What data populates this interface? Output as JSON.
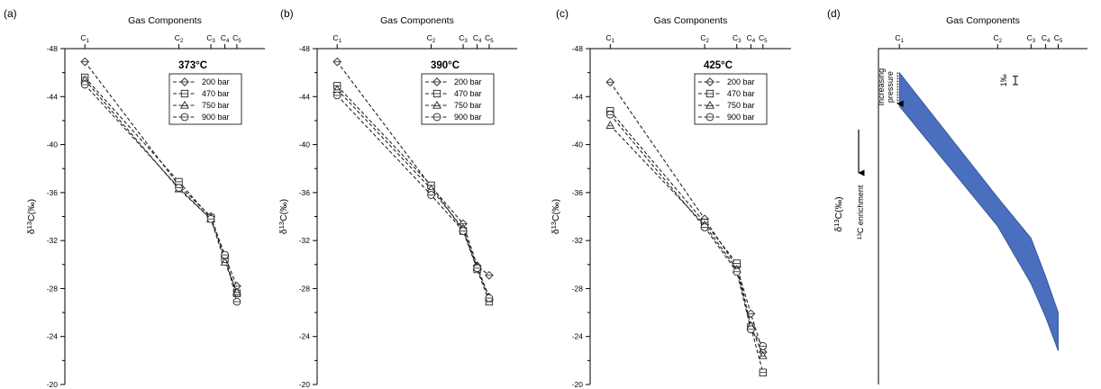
{
  "chart_data": [
    {
      "panel": "(a)",
      "type": "line",
      "annotation": "373°C",
      "x_title": "Gas Components",
      "categories": [
        "C1",
        "C2",
        "C3",
        "C4",
        "C5"
      ],
      "category_positions": [
        1,
        2,
        3,
        4,
        5
      ],
      "ylabel": "δ13C(‰)",
      "ylim": [
        -48,
        -20
      ],
      "y_reversed": true,
      "yticks": [
        -48,
        -44,
        -40,
        -36,
        -32,
        -28,
        -24,
        -20
      ],
      "series": [
        {
          "name": "200 bar",
          "marker": "diamond",
          "x": [
            1,
            2,
            3,
            4,
            5
          ],
          "values": [
            -46.9,
            -36.6,
            -34.0,
            -30.7,
            -28.2
          ]
        },
        {
          "name": "470 bar",
          "marker": "square",
          "x": [
            1,
            2,
            3,
            4,
            5
          ],
          "values": [
            -45.6,
            -36.9,
            -33.9,
            -30.5,
            -27.6
          ]
        },
        {
          "name": "750 bar",
          "marker": "triangle",
          "x": [
            1,
            2,
            3,
            4,
            5
          ],
          "values": [
            -45.4,
            -36.3,
            -33.8,
            -30.2,
            -27.7
          ]
        },
        {
          "name": "900 bar",
          "marker": "circle",
          "x": [
            1,
            2,
            3,
            4,
            5
          ],
          "values": [
            -45.0,
            -36.4,
            -33.8,
            -30.8,
            -26.9
          ]
        }
      ]
    },
    {
      "panel": "(b)",
      "type": "line",
      "annotation": "390°C",
      "x_title": "Gas Components",
      "categories": [
        "C1",
        "C2",
        "C3",
        "C4",
        "C5"
      ],
      "category_positions": [
        1,
        2,
        3,
        4,
        5
      ],
      "ylabel": "δ13C(‰)",
      "ylim": [
        -48,
        -20
      ],
      "y_reversed": true,
      "yticks": [
        -48,
        -44,
        -40,
        -36,
        -32,
        -28,
        -24,
        -20
      ],
      "series": [
        {
          "name": "200 bar",
          "marker": "diamond",
          "x": [
            1,
            2,
            3,
            4,
            5
          ],
          "values": [
            -46.9,
            -36.5,
            -33.4,
            -29.9,
            -29.1
          ]
        },
        {
          "name": "470 bar",
          "marker": "square",
          "x": [
            1,
            2,
            3,
            4,
            5
          ],
          "values": [
            -44.9,
            -36.6,
            -32.8,
            -29.6,
            -26.9
          ]
        },
        {
          "name": "750 bar",
          "marker": "triangle",
          "x": [
            1,
            2,
            3,
            4,
            5
          ],
          "values": [
            -44.6,
            -36.3,
            -33.0,
            -29.8,
            -27.3
          ]
        },
        {
          "name": "900 bar",
          "marker": "circle",
          "x": [
            1,
            2,
            3,
            4,
            5
          ],
          "values": [
            -44.1,
            -35.8,
            -32.8,
            -29.7,
            -27.2
          ]
        }
      ]
    },
    {
      "panel": "(c)",
      "type": "line",
      "annotation": "425°C",
      "x_title": "Gas Components",
      "categories": [
        "C1",
        "C2",
        "C3",
        "C4",
        "C5"
      ],
      "category_positions": [
        1,
        2,
        3,
        4,
        5
      ],
      "ylabel": "δ13C(‰)",
      "ylim": [
        -48,
        -20
      ],
      "y_reversed": true,
      "yticks": [
        -48,
        -44,
        -40,
        -36,
        -32,
        -28,
        -24,
        -20
      ],
      "series": [
        {
          "name": "200 bar",
          "marker": "diamond",
          "x": [
            1,
            2,
            3,
            4,
            5
          ],
          "values": [
            -45.2,
            -33.8,
            -29.8,
            -25.9,
            -22.7
          ]
        },
        {
          "name": "470 bar",
          "marker": "square",
          "x": [
            1,
            2,
            3,
            4,
            5
          ],
          "values": [
            -42.8,
            -33.5,
            -30.1,
            -24.8,
            -21.0
          ]
        },
        {
          "name": "750 bar",
          "marker": "triangle",
          "x": [
            1,
            2,
            3,
            4,
            5
          ],
          "values": [
            -41.6,
            -33.3,
            -29.6,
            -24.9,
            -22.4
          ]
        },
        {
          "name": "900 bar",
          "marker": "circle",
          "x": [
            1,
            2,
            3,
            4,
            5
          ],
          "values": [
            -42.5,
            -33.1,
            -29.4,
            -24.6,
            -23.2
          ]
        }
      ]
    },
    {
      "panel": "(d)",
      "type": "area",
      "x_title": "Gas Components",
      "categories": [
        "C1",
        "C2",
        "C3",
        "C4",
        "C5"
      ],
      "category_positions": [
        1,
        2,
        3,
        4,
        5
      ],
      "ylabel": "δ13C(‰)",
      "ylabel_secondary": "13C enrichment",
      "band_color": "#4a6fbf",
      "band_stroke": "#2f4f8f",
      "band_upper_y": [
        -46.0,
        -35.6,
        -32.2,
        -29.0,
        -26.0
      ],
      "band_lower_y": [
        -43.2,
        -33.2,
        -28.4,
        -25.6,
        -22.8
      ],
      "annotations": {
        "pressure_text": "Increasing pressure",
        "scale_label": "1‰"
      }
    }
  ]
}
